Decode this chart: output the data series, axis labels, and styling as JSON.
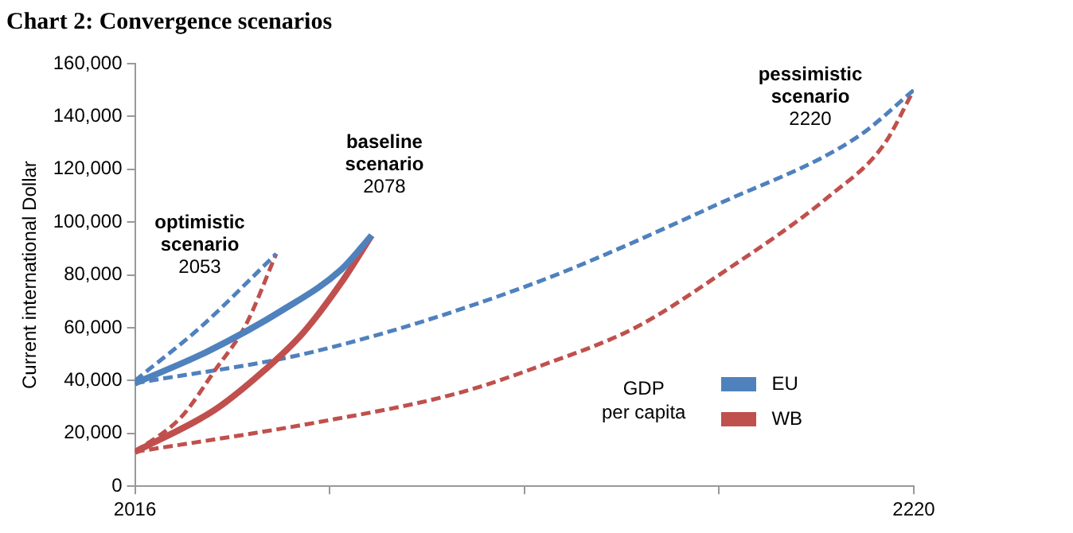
{
  "chart_data": {
    "type": "line",
    "title": "Chart 2: Convergence scenarios",
    "ylabel": "Current international Dollar",
    "legend_title": "GDP per capita",
    "legend": "bottom right",
    "xlim": [
      2016,
      2220
    ],
    "xticks": [
      2016,
      {
        "value": 2067,
        "label": null
      },
      {
        "value": 2118,
        "label": null
      },
      {
        "value": 2169,
        "label": null
      },
      2220
    ],
    "ylim": [
      0,
      160000
    ],
    "yticks": [
      0,
      {
        "value": 20000,
        "label": "20,000"
      },
      {
        "value": 40000,
        "label": "40,000"
      },
      {
        "value": 60000,
        "label": "60,000"
      },
      {
        "value": 80000,
        "label": "80,000"
      },
      {
        "value": 100000,
        "label": "100,000"
      },
      {
        "value": 120000,
        "label": "120,000"
      },
      {
        "value": 140000,
        "label": "140,000"
      },
      {
        "value": 160000,
        "label": "160,000"
      }
    ],
    "series": [
      {
        "name": "EU",
        "color": "#4f81bd",
        "line_style": "solid",
        "x": [
          2016,
          2035,
          2055,
          2070,
          2078
        ],
        "values": [
          39000,
          51000,
          67000,
          82000,
          95000
        ]
      },
      {
        "name": "WB",
        "color": "#c0504d",
        "line_style": "solid",
        "x": [
          2016,
          2037,
          2050,
          2060,
          2070,
          2078
        ],
        "values": [
          13000,
          29000,
          44000,
          58000,
          77000,
          95000
        ]
      },
      {
        "color": "#4f81bd",
        "line_style": "dashed",
        "x": [
          2016,
          2033,
          2053
        ],
        "values": [
          40000,
          60000,
          88000
        ]
      },
      {
        "color": "#c0504d",
        "line_style": "dashed",
        "x": [
          2016,
          2028,
          2037,
          2045,
          2053
        ],
        "values": [
          13000,
          26000,
          44000,
          61000,
          88000
        ]
      },
      {
        "color": "#4f81bd",
        "line_style": "dashed",
        "x": [
          2016,
          2063,
          2119,
          2169,
          2205,
          2220
        ],
        "values": [
          39000,
          51000,
          76000,
          107000,
          132000,
          150000
        ]
      },
      {
        "color": "#c0504d",
        "line_style": "dashed",
        "x": [
          2016,
          2063,
          2100,
          2123,
          2147,
          2169,
          2198,
          2212,
          2220
        ],
        "values": [
          13000,
          24000,
          35000,
          46000,
          60000,
          80000,
          110000,
          129000,
          150000
        ]
      }
    ],
    "annotations": [
      {
        "text": "optimistic\nscenario\n2053",
        "x": 2053,
        "y": 88000
      },
      {
        "text": "baseline\nscenario\n2078",
        "x": 2078,
        "y": 95000
      },
      {
        "text": "pessimistic\nscenario\n2220",
        "x": 2220,
        "y": 150000
      }
    ]
  }
}
